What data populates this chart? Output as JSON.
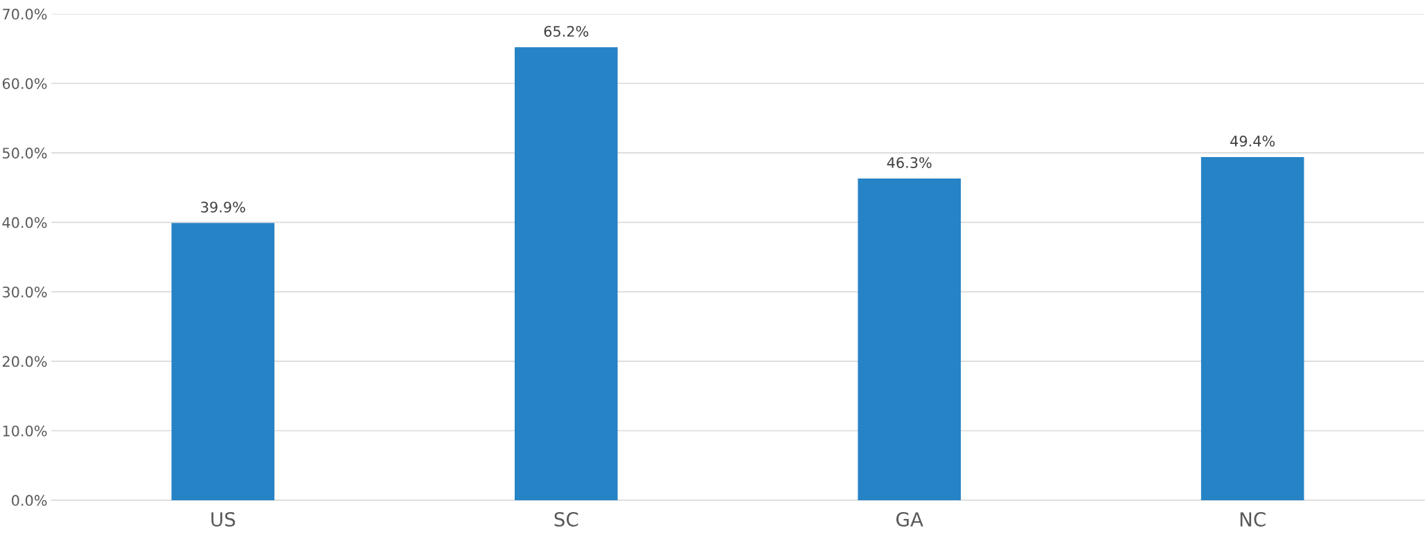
{
  "chart_data": {
    "type": "bar",
    "categories": [
      "US",
      "SC",
      "GA",
      "NC"
    ],
    "values": [
      39.9,
      65.2,
      46.3,
      49.4
    ],
    "color": "#2683c6",
    "value_labels": [
      "39.9%",
      "65.2%",
      "46.3%",
      "49.4%"
    ],
    "ylim": [
      0,
      70
    ],
    "yticks": [
      {
        "value": 0,
        "label": "0.0%"
      },
      {
        "value": 10,
        "label": "10.0%"
      },
      {
        "value": 20,
        "label": "20.0%"
      },
      {
        "value": 30,
        "label": "30.0%"
      },
      {
        "value": 40,
        "label": "40.0%"
      },
      {
        "value": 50,
        "label": "50.0%"
      },
      {
        "value": 60,
        "label": "60.0%"
      },
      {
        "value": 70,
        "label": "70.0%"
      }
    ],
    "grid": "y",
    "legend": false
  }
}
